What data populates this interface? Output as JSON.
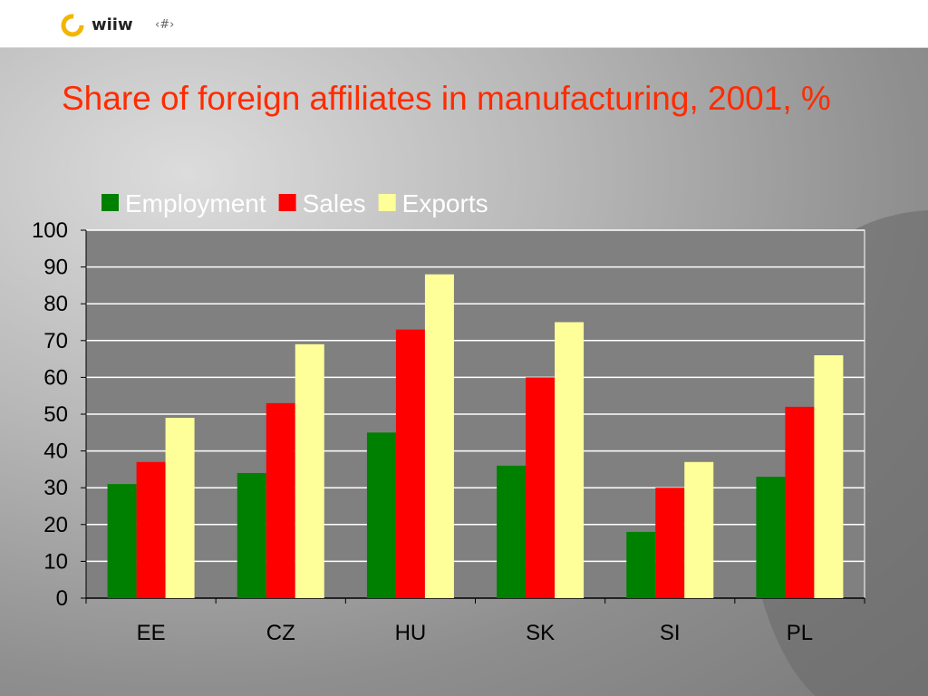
{
  "header": {
    "logo_text": "wiiw",
    "slide_number": "‹#›"
  },
  "colors": {
    "title": "#ff2b00",
    "employment": "#008000",
    "sales": "#ff0000",
    "exports": "#ffff99",
    "plot_bg": "#808080"
  },
  "chart_data": {
    "type": "bar",
    "title": "Share of foreign affiliates in manufacturing, 2001, %",
    "categories": [
      "EE",
      "CZ",
      "HU",
      "SK",
      "SI",
      "PL"
    ],
    "series": [
      {
        "name": "Employment",
        "color": "#008000",
        "values": [
          31,
          34,
          45,
          36,
          18,
          33
        ]
      },
      {
        "name": "Sales",
        "color": "#ff0000",
        "values": [
          37,
          53,
          73,
          60,
          30,
          52
        ]
      },
      {
        "name": "Exports",
        "color": "#ffff99",
        "values": [
          49,
          69,
          88,
          75,
          37,
          66
        ]
      }
    ],
    "ylim": [
      0,
      100
    ],
    "yticks": [
      "0",
      "10",
      "20",
      "30",
      "40",
      "50",
      "60",
      "70",
      "80",
      "90",
      "100"
    ],
    "grid": true,
    "legend": "top-left"
  }
}
